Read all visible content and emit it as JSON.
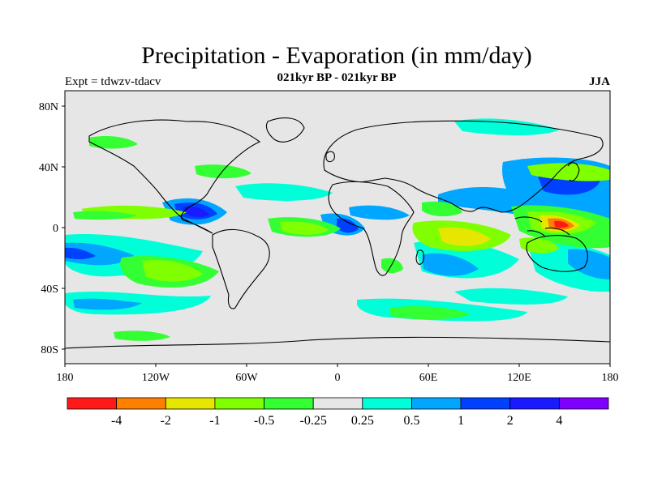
{
  "title": "Precipitation - Evaporation (in mm/day)",
  "subtitle": "021kyr BP - 021kyr BP",
  "experiment_label": "Expt = tdwzv-tdacv",
  "season": "JJA",
  "map": {
    "lat_ticks": [
      "80N",
      "40N",
      "0",
      "40S",
      "80S"
    ],
    "lon_ticks": [
      "180",
      "120W",
      "60W",
      "0",
      "60E",
      "120E",
      "180"
    ],
    "land_color": "#e6e6e6"
  },
  "colorbar": {
    "colors": [
      "#ff1a1a",
      "#ff8000",
      "#e6e600",
      "#80ff00",
      "#33ff33",
      "#e6e6e6",
      "#00ffd9",
      "#00a6ff",
      "#0040ff",
      "#1a1aff",
      "#8000ff"
    ],
    "labels": [
      "-4",
      "-2",
      "-1",
      "-0.5",
      "-0.25",
      "0.25",
      "0.5",
      "1",
      "2",
      "4"
    ]
  }
}
